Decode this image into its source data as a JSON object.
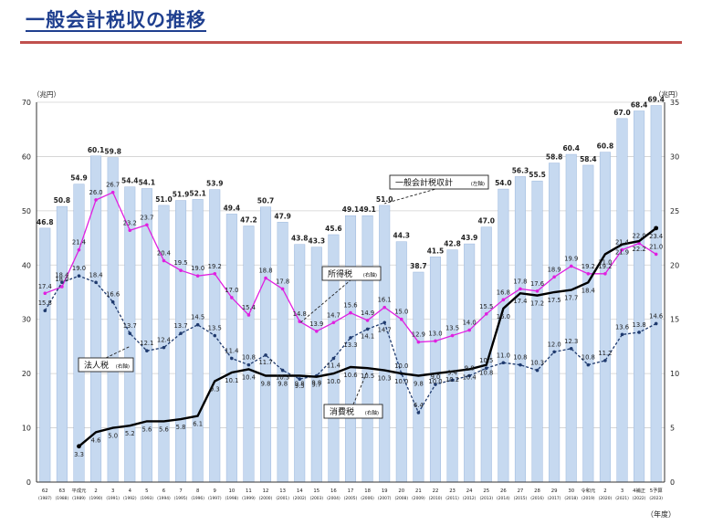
{
  "page": {
    "title": "一般会計税収の推移"
  },
  "chart_data": {
    "type": "bar+line",
    "left_axis_unit": "（兆円）",
    "right_axis_unit": "（兆円）",
    "x_axis_unit": "（年度）",
    "left_ylim": [
      0,
      70
    ],
    "right_ylim": [
      0,
      35
    ],
    "left_ticks": [
      "0",
      "10",
      "20",
      "30",
      "40",
      "50",
      "60",
      "70"
    ],
    "right_ticks": [
      "0",
      "5",
      "10",
      "15",
      "20",
      "25",
      "30",
      "35"
    ],
    "grid": true,
    "categories": [
      {
        "label": "62",
        "sub": "(1987)"
      },
      {
        "label": "63",
        "sub": "(1988)"
      },
      {
        "label": "平成元",
        "sub": "(1989)"
      },
      {
        "label": "2",
        "sub": "(1990)"
      },
      {
        "label": "3",
        "sub": "(1991)"
      },
      {
        "label": "4",
        "sub": "(1992)"
      },
      {
        "label": "5",
        "sub": "(1993)"
      },
      {
        "label": "6",
        "sub": "(1994)"
      },
      {
        "label": "7",
        "sub": "(1995)"
      },
      {
        "label": "8",
        "sub": "(1996)"
      },
      {
        "label": "9",
        "sub": "(1997)"
      },
      {
        "label": "10",
        "sub": "(1998)"
      },
      {
        "label": "11",
        "sub": "(1999)"
      },
      {
        "label": "12",
        "sub": "(2000)"
      },
      {
        "label": "13",
        "sub": "(2001)"
      },
      {
        "label": "14",
        "sub": "(2002)"
      },
      {
        "label": "15",
        "sub": "(2003)"
      },
      {
        "label": "16",
        "sub": "(2004)"
      },
      {
        "label": "17",
        "sub": "(2005)"
      },
      {
        "label": "18",
        "sub": "(2006)"
      },
      {
        "label": "19",
        "sub": "(2007)"
      },
      {
        "label": "20",
        "sub": "(2008)"
      },
      {
        "label": "21",
        "sub": "(2009)"
      },
      {
        "label": "22",
        "sub": "(2010)"
      },
      {
        "label": "23",
        "sub": "(2011)"
      },
      {
        "label": "24",
        "sub": "(2012)"
      },
      {
        "label": "25",
        "sub": "(2013)"
      },
      {
        "label": "26",
        "sub": "(2014)"
      },
      {
        "label": "27",
        "sub": "(2015)"
      },
      {
        "label": "28",
        "sub": "(2016)"
      },
      {
        "label": "29",
        "sub": "(2017)"
      },
      {
        "label": "30",
        "sub": "(2018)"
      },
      {
        "label": "令和元",
        "sub": "(2019)"
      },
      {
        "label": "2",
        "sub": "(2020)"
      },
      {
        "label": "3",
        "sub": "(2021)"
      },
      {
        "label": "4補正",
        "sub": "(2022)"
      },
      {
        "label": "5予算",
        "sub": "(2023)"
      }
    ],
    "series": [
      {
        "name": "一般会計税収計（左軸）",
        "legend_label": "一般会計税収計",
        "legend_suffix": "(左軸)",
        "kind": "bar",
        "axis": "left",
        "color": "#c6d9f0",
        "stroke": "#9bb7dd",
        "values": [
          46.8,
          50.8,
          54.9,
          60.1,
          59.8,
          54.4,
          54.1,
          51.0,
          51.9,
          52.1,
          53.9,
          49.4,
          47.2,
          50.7,
          47.9,
          43.8,
          43.3,
          45.6,
          49.1,
          49.1,
          51.0,
          44.3,
          38.7,
          41.5,
          42.8,
          43.9,
          47.0,
          54.0,
          56.3,
          55.5,
          58.8,
          60.4,
          58.4,
          60.8,
          67.0,
          68.4,
          69.4
        ],
        "labels": [
          "46.8",
          "50.8",
          "54.9",
          "60.1",
          "59.8",
          "54.4",
          "54.1",
          "51.0",
          "51.9",
          "52.1",
          "53.9",
          "49.4",
          "47.2",
          "50.7",
          "47.9",
          "43.8",
          "43.3",
          "45.6",
          "49.1",
          "49.1",
          "51.0",
          "44.3",
          "38.7",
          "41.5",
          "42.8",
          "43.9",
          "47.0",
          "54.0",
          "56.3",
          "55.5",
          "58.8",
          "60.4",
          "58.4",
          "60.8",
          "67.0",
          "68.4",
          "69.4"
        ]
      },
      {
        "name": "所得税（右軸）",
        "legend_label": "所得税",
        "legend_suffix": "(右軸)",
        "kind": "line",
        "axis": "right",
        "color": "#e020e0",
        "dashed": false,
        "values": [
          17.4,
          18.0,
          21.4,
          26.0,
          26.7,
          23.2,
          23.7,
          20.4,
          19.5,
          19.0,
          19.2,
          17.0,
          15.4,
          18.8,
          17.8,
          14.8,
          13.9,
          14.7,
          15.6,
          14.9,
          16.1,
          15.0,
          12.9,
          13.0,
          13.5,
          14.0,
          15.5,
          16.8,
          17.8,
          17.6,
          18.9,
          19.9,
          19.2,
          19.2,
          21.4,
          22.0,
          21.0
        ],
        "labels": [
          "17.4",
          "18.0",
          "21.4",
          "26.0",
          "26.7",
          "23.2",
          "23.7",
          "20.4",
          "19.5",
          "19.0",
          "19.2",
          "17.0",
          "15.4",
          "18.8",
          "17.8",
          "14.8",
          "13.9",
          "14.7",
          "15.6",
          "14.9",
          "16.1",
          "15.0",
          "12.9",
          "13.0",
          "13.5",
          "14.0",
          "15.5",
          "16.8",
          "17.8",
          "17.6",
          "18.9",
          "19.9",
          "19.2",
          "19.2",
          "21.4",
          "22.0",
          "21.0"
        ]
      },
      {
        "name": "法人税（右軸）",
        "legend_label": "法人税",
        "legend_suffix": "(右軸)",
        "kind": "line",
        "axis": "right",
        "color": "#1f3a6e",
        "dashed": true,
        "values": [
          15.8,
          18.4,
          19.0,
          18.4,
          16.6,
          13.7,
          12.1,
          12.4,
          13.7,
          14.5,
          13.5,
          11.4,
          10.8,
          11.7,
          10.3,
          9.5,
          9.8,
          11.4,
          13.3,
          14.1,
          14.7,
          10.0,
          6.4,
          9.0,
          9.4,
          9.8,
          10.5,
          11.0,
          10.8,
          10.3,
          12.0,
          12.3,
          10.8,
          11.2,
          13.6,
          13.8,
          14.6
        ],
        "labels": [
          "15.8",
          "18.4",
          "19.0",
          "18.4",
          "16.6",
          "13.7",
          "12.1",
          "12.4",
          "13.7",
          "14.5",
          "13.5",
          "11.4",
          "10.8",
          "11.7",
          "10.3",
          "9.5",
          "9.8",
          "11.4",
          "13.3",
          "14.1",
          "14.7",
          "10.0",
          "6.4",
          "9.0",
          "9.4",
          "9.8",
          "10.5",
          "11.0",
          "10.8",
          "10.3",
          "12.0",
          "12.3",
          "10.8",
          "11.2",
          "13.6",
          "13.8",
          "14.6"
        ]
      },
      {
        "name": "消費税（右軸）",
        "legend_label": "消費税",
        "legend_suffix": "(右軸)",
        "kind": "line",
        "axis": "right",
        "color": "#000000",
        "dashed": false,
        "values": [
          null,
          null,
          3.3,
          4.6,
          5.0,
          5.2,
          5.6,
          5.6,
          5.8,
          6.1,
          9.3,
          10.1,
          10.4,
          9.8,
          9.8,
          9.8,
          9.7,
          10.0,
          10.6,
          10.5,
          10.3,
          10.0,
          9.8,
          10.0,
          10.2,
          10.4,
          10.8,
          16.0,
          17.4,
          17.2,
          17.5,
          17.7,
          18.4,
          21.0,
          21.9,
          22.2,
          23.4
        ],
        "labels": [
          "",
          "",
          "3.3",
          "4.6",
          "5.0",
          "5.2",
          "5.6",
          "5.6",
          "5.8",
          "6.1",
          "9.3",
          "10.1",
          "10.4",
          "9.8",
          "9.8",
          "9.8",
          "9.7",
          "10.0",
          "10.6",
          "10.5",
          "10.3",
          "10.0",
          "9.8",
          "10.0",
          "10.2",
          "10.4",
          "10.8",
          "16.0",
          "17.4",
          "17.2",
          "17.5",
          "17.7",
          "18.4",
          "21.0",
          "21.9",
          "22.2",
          "23.4"
        ]
      }
    ]
  }
}
